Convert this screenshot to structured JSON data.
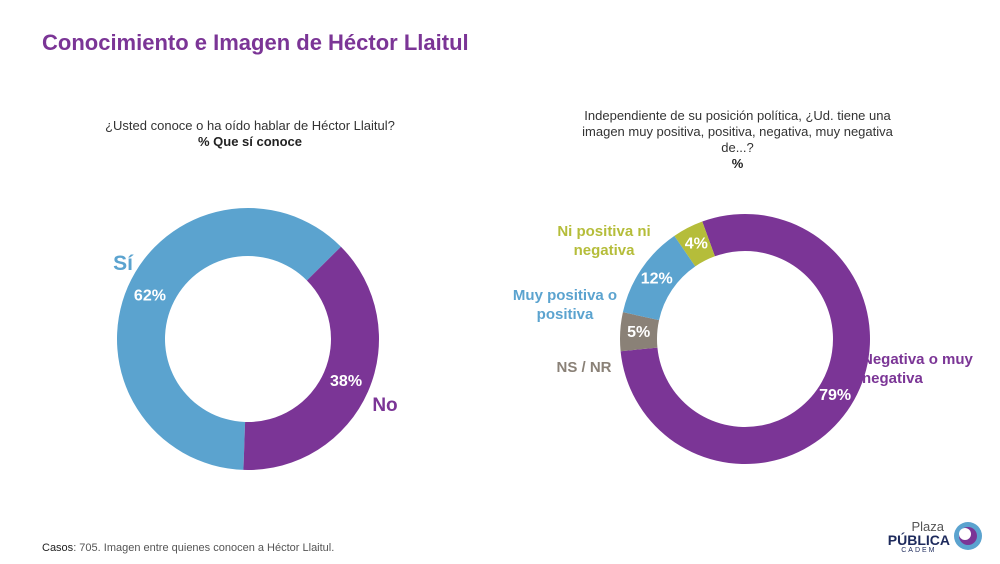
{
  "title": "Conocimiento e Imagen de Héctor Llaitul",
  "chart_data": [
    {
      "type": "donut",
      "title": "¿Usted conoce o ha oído hablar de Héctor Llaitul?",
      "subtitle": "% Que sí conoce",
      "categories": [
        "Sí",
        "No"
      ],
      "values": [
        62,
        38
      ],
      "value_labels": [
        "62%",
        "38%"
      ],
      "colors": [
        "#5ba3cf",
        "#7b3596"
      ]
    },
    {
      "type": "donut",
      "title": "Independiente de su posición política, ¿Ud. tiene una imagen muy positiva, positiva, negativa, muy negativa de...?",
      "subtitle": "%",
      "categories": [
        "Negativa o muy negativa",
        "NS / NR",
        "Muy positiva o positiva",
        "Ni positiva ni negativa"
      ],
      "values": [
        79,
        5,
        12,
        4
      ],
      "value_labels": [
        "79%",
        "5%",
        "12%",
        "4%"
      ],
      "colors": [
        "#7b3596",
        "#8a8177",
        "#5ba3cf",
        "#b5bd3a"
      ]
    }
  ],
  "footer": {
    "label": "Casos",
    "text": ": 705. Imagen entre quienes conocen a Héctor Llaitul."
  },
  "logo": {
    "line1": "Plaza",
    "line2": "PÚBLICA",
    "line3": "CADEM"
  }
}
